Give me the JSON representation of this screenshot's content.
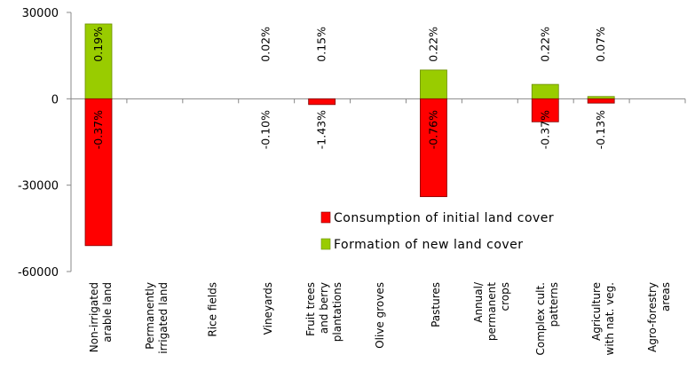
{
  "chart_data": {
    "type": "bar",
    "stacked": true,
    "categories": [
      [
        "Non-irrigated",
        "arable land"
      ],
      [
        "Permanently",
        "irrigated land"
      ],
      [
        "Rice fields"
      ],
      [
        "Vineyards"
      ],
      [
        "Fruit trees",
        "and berry",
        "plantations"
      ],
      [
        "Olive groves"
      ],
      [
        "Pastures"
      ],
      [
        "Annual/",
        "permanent",
        "crops"
      ],
      [
        "Complex cult.",
        "patterns"
      ],
      [
        "Agriculture",
        "with nat. veg."
      ],
      [
        "Agro-forestry",
        "areas"
      ]
    ],
    "series": [
      {
        "name": "Consumption of initial land cover",
        "color": "#ff0000",
        "values": [
          -51000,
          0,
          0,
          0,
          -2000,
          0,
          -34000,
          0,
          -8000,
          -1500,
          0
        ],
        "labels": [
          "-0.37%",
          "",
          "",
          "-0.10%",
          "-1.43%",
          "",
          "-0.76%",
          "",
          "-0.37%",
          "-0.13%",
          ""
        ]
      },
      {
        "name": "Formation of new land cover",
        "color": "#99cc00",
        "values": [
          26000,
          0,
          0,
          0,
          0,
          0,
          10000,
          0,
          5000,
          800,
          0
        ],
        "labels": [
          "0.19%",
          "",
          "",
          "0.02%",
          "0.15%",
          "",
          "0.22%",
          "",
          "0.22%",
          "0.07%",
          ""
        ]
      }
    ],
    "ylim": [
      -60000,
      30000
    ],
    "yticks": [
      30000,
      0,
      -30000,
      -60000
    ],
    "ytick_labels": [
      "30000",
      "0",
      "-30000",
      "-60000"
    ],
    "legend": "center-right",
    "grid": false,
    "title": "",
    "xlabel": "",
    "ylabel": ""
  }
}
